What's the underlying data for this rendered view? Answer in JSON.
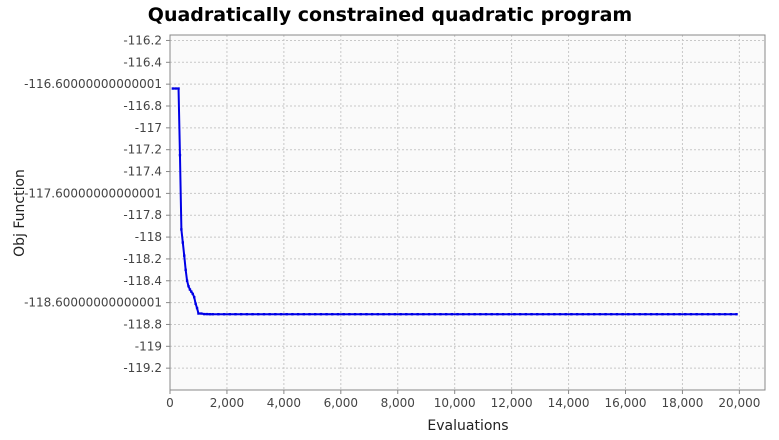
{
  "chart_data": {
    "type": "line",
    "title": "Quadratically constrained quadratic program",
    "xlabel": "Evaluations",
    "ylabel": "Obj Function",
    "xlim": [
      0,
      20900
    ],
    "ylim": [
      -119.4,
      -116.15
    ],
    "grid": true,
    "legend": "none",
    "x_ticks": [
      0,
      2000,
      4000,
      6000,
      8000,
      10000,
      12000,
      14000,
      16000,
      18000,
      20000
    ],
    "x_tick_labels": [
      "0",
      "2,000",
      "4,000",
      "6,000",
      "8,000",
      "10,000",
      "12,000",
      "14,000",
      "16,000",
      "18,000",
      "20,000"
    ],
    "y_ticks": [
      -116.2,
      -116.4,
      -116.6,
      -116.8,
      -117,
      -117.2,
      -117.4,
      -117.6,
      -117.8,
      -118,
      -118.2,
      -118.4,
      -118.6,
      -118.8,
      -119,
      -119.2
    ],
    "y_tick_labels": [
      "-116.2",
      "-116.4",
      "-116.60000000000001",
      "-116.8",
      "-117",
      "-117.2",
      "-117.4",
      "-117.60000000000001",
      "-117.8",
      "-118",
      "-118.2",
      "-118.4",
      "-118.60000000000001",
      "-118.8",
      "-119",
      "-119.2"
    ],
    "series": [
      {
        "color": "#0000e6",
        "x": [
          100,
          200,
          300,
          350,
          400,
          450,
          500,
          550,
          600,
          650,
          700,
          750,
          800,
          850,
          900,
          950,
          1000,
          1100,
          1200,
          1300,
          1400,
          1500
        ],
        "y": [
          -116.64,
          -116.64,
          -116.64,
          -117.25,
          -117.93,
          -118.05,
          -118.17,
          -118.3,
          -118.4,
          -118.45,
          -118.48,
          -118.5,
          -118.52,
          -118.55,
          -118.61,
          -118.65,
          -118.7,
          -118.7,
          -118.705,
          -118.705,
          -118.706,
          -118.706
        ],
        "tail_from": 1500,
        "tail_to": 20000,
        "tail_step": 200,
        "tail_value": -118.706
      }
    ]
  }
}
